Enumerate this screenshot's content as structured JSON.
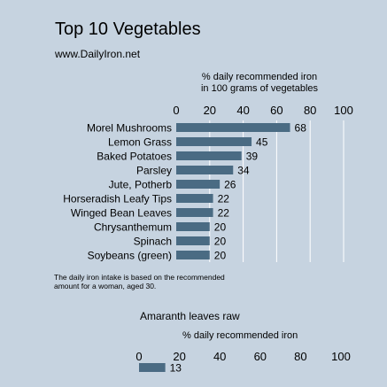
{
  "header": {
    "title": "Top 10 Vegetables",
    "site": "www.DailyIron.net"
  },
  "chart_data": [
    {
      "type": "bar",
      "orientation": "horizontal",
      "xlabel_lines": [
        "% daily recommended iron",
        "in 100 grams of vegetables"
      ],
      "xlim": [
        0,
        100
      ],
      "ticks": [
        0,
        20,
        40,
        60,
        80,
        100
      ],
      "gridlines": true,
      "categories": [
        "Morel Mushrooms",
        "Lemon Grass",
        "Baked Potatoes",
        "Parsley",
        "Jute, Potherb",
        "Horseradish Leafy Tips",
        "Winged Bean Leaves",
        "Chrysanthemum",
        "Spinach",
        "Soybeans (green)"
      ],
      "values": [
        68,
        45,
        39,
        34,
        26,
        22,
        22,
        20,
        20,
        20
      ],
      "bar_color": "#4a6b83"
    },
    {
      "type": "bar",
      "orientation": "horizontal",
      "title": "Amaranth leaves raw",
      "xlabel": "% daily recommended iron",
      "xlim": [
        0,
        100
      ],
      "ticks": [
        0,
        20,
        40,
        60,
        80,
        100
      ],
      "categories": [
        ""
      ],
      "values": [
        13
      ],
      "bar_color": "#4a6b83"
    }
  ],
  "footnote": {
    "line1": "The daily iron intake is based on the recommended",
    "line2": "amount for a woman, aged 30."
  }
}
